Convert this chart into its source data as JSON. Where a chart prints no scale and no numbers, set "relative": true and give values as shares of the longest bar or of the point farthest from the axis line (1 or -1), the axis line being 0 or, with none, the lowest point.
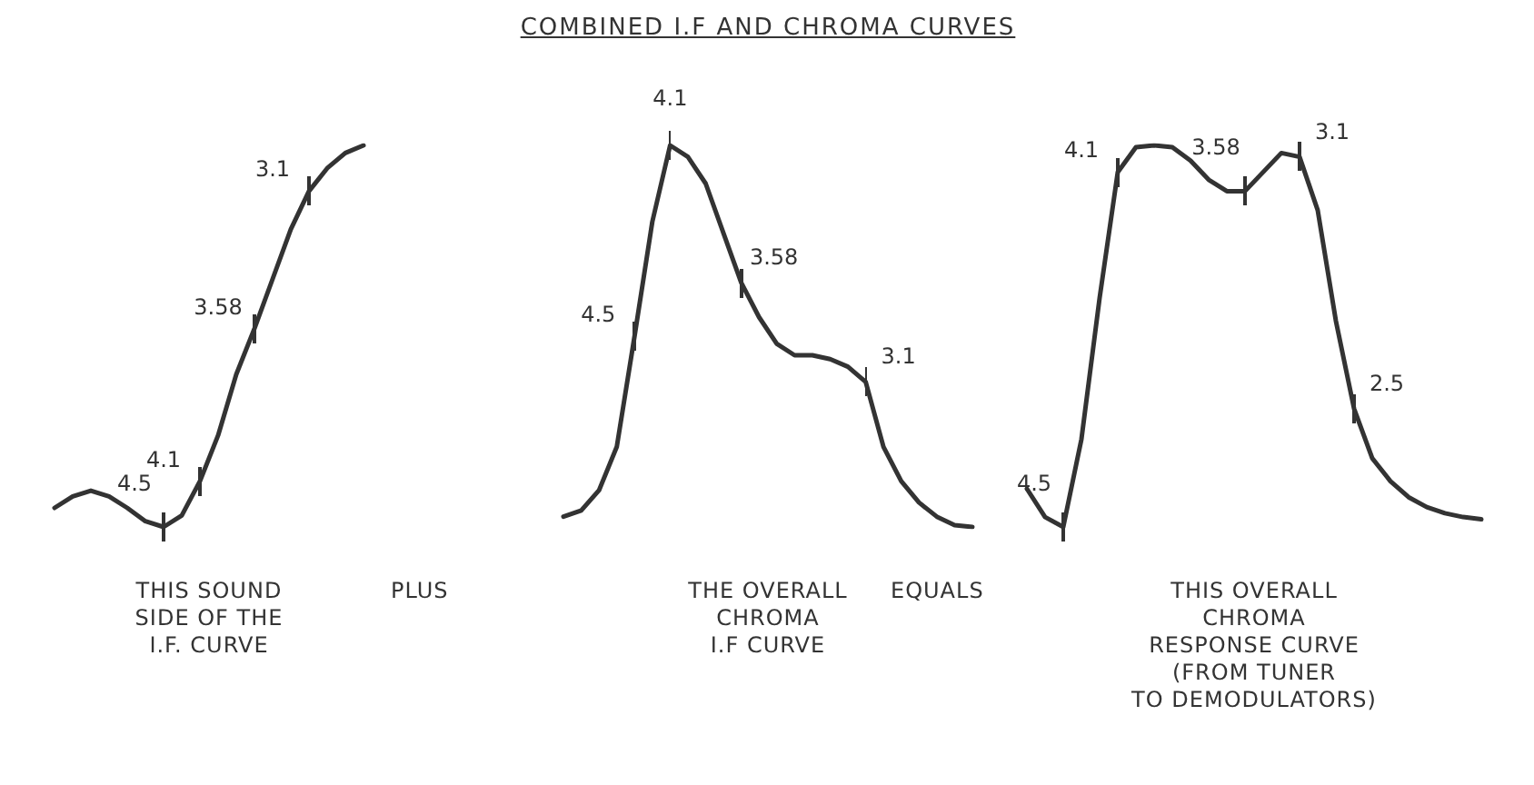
{
  "chart_data": [
    {
      "type": "line",
      "xlabel": "THIS SOUND\nSIDE OF THE\nI.F. CURVE",
      "relative": true,
      "categories": [
        null,
        null,
        null,
        null,
        null,
        null,
        null,
        null,
        null,
        null,
        null,
        null,
        null,
        null,
        null,
        null,
        null,
        null
      ],
      "annotations": [
        "PLUS",
        "4.5",
        "4.1",
        "3.58",
        "3.1"
      ],
      "series": [
        {
          "color": "#333333",
          "values": [
            0.05,
            0.08,
            0.095,
            0.08,
            0.05,
            0.015,
            0,
            0.03,
            0.12,
            0.24,
            0.4,
            0.52,
            0.65,
            0.78,
            0.88,
            0.94,
            0.98,
            1
          ]
        }
      ]
    },
    {
      "type": "line",
      "title": "COMBINED I.F AND CHROMA CURVES",
      "xlabel": "THE OVERALL\nCHROMA\nI.F CURVE",
      "relative": true,
      "categories": [
        null,
        null,
        null,
        null,
        null,
        null,
        null,
        null,
        null,
        null,
        null,
        null,
        null,
        null,
        null,
        null,
        null,
        null,
        null,
        null,
        null,
        null,
        null,
        null
      ],
      "annotations": [
        "EQUALS",
        "4.5",
        "4.1",
        "3.58",
        "3.1"
      ],
      "series": [
        {
          "color": "#333333",
          "values": [
            0.027,
            0.043,
            0.096,
            0.21,
            0.5,
            0.8,
            1,
            0.97,
            0.9,
            0.77,
            0.64,
            0.55,
            0.48,
            0.45,
            0.45,
            0.44,
            0.42,
            0.38,
            0.21,
            0.12,
            0.064,
            0.027,
            0.005,
            0
          ]
        }
      ]
    },
    {
      "type": "line",
      "xlabel": "THIS OVERALL\nCHROMA\nRESPONSE CURVE\n(FROM TUNER\nTO DEMODULATORS)",
      "relative": true,
      "categories": [
        null,
        null,
        null,
        null,
        null,
        null,
        null,
        null,
        null,
        null,
        null,
        null,
        null,
        null,
        null,
        null,
        null,
        null,
        null,
        null,
        null,
        null,
        null,
        null,
        null,
        null
      ],
      "annotations": [
        "4.5",
        "4.1",
        "3.58",
        "3.1",
        "2.5"
      ],
      "series": [
        {
          "color": "#333333",
          "values": [
            0.1,
            0.026,
            0,
            0.23,
            0.6,
            0.93,
            0.995,
            1,
            0.995,
            0.96,
            0.91,
            0.88,
            0.88,
            0.93,
            0.98,
            0.97,
            0.83,
            0.54,
            0.31,
            0.18,
            0.12,
            0.078,
            0.052,
            0.036,
            0.026,
            0.02
          ]
        }
      ]
    }
  ]
}
